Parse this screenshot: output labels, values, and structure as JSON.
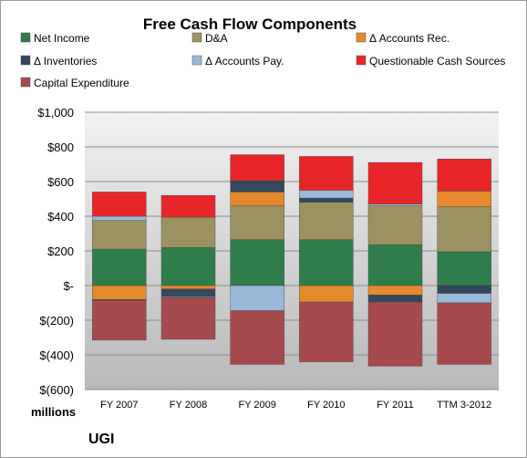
{
  "chart_data": {
    "type": "bar",
    "stacked": true,
    "title": "Free Cash Flow Components",
    "unit_label": "millions",
    "company": "UGI",
    "ylim": [
      -600,
      1000
    ],
    "yticks": [
      {
        "value": 1000,
        "label": "$1,000"
      },
      {
        "value": 800,
        "label": "$800"
      },
      {
        "value": 600,
        "label": "$600"
      },
      {
        "value": 400,
        "label": "$400"
      },
      {
        "value": 200,
        "label": "$200"
      },
      {
        "value": 0,
        "label": "$-"
      },
      {
        "value": -200,
        "label": "$(200)"
      },
      {
        "value": -400,
        "label": "$(400)"
      },
      {
        "value": -600,
        "label": "$(600)"
      }
    ],
    "grid": true,
    "legend_position": "top",
    "categories": [
      "FY 2007",
      "FY 2008",
      "FY 2009",
      "FY 2010",
      "FY 2011",
      "TTM 3-2012"
    ],
    "series": [
      {
        "name": "Net Income",
        "color": "#2e7d4b",
        "values": [
          210,
          220,
          265,
          265,
          235,
          195
        ]
      },
      {
        "name": "D&A",
        "color": "#9c9160",
        "values": [
          165,
          175,
          195,
          215,
          225,
          260
        ]
      },
      {
        "name": "Δ Accounts Rec.",
        "color": "#e58a2c",
        "values": [
          -80,
          -20,
          80,
          -95,
          -55,
          90
        ]
      },
      {
        "name": "Δ Inventories",
        "color": "#34475c",
        "values": [
          -5,
          -45,
          65,
          25,
          -40,
          -45
        ]
      },
      {
        "name": "Δ Accounts Pay.",
        "color": "#9ab8d8",
        "values": [
          25,
          -5,
          -145,
          45,
          10,
          -55
        ]
      },
      {
        "name": "Questionable Cash Sources",
        "color": "#e8262a",
        "values": [
          140,
          125,
          150,
          195,
          240,
          185
        ]
      },
      {
        "name": "Capital Expenditure",
        "color": "#a64a4e",
        "values": [
          -230,
          -240,
          -310,
          -345,
          -370,
          -355
        ]
      }
    ]
  }
}
